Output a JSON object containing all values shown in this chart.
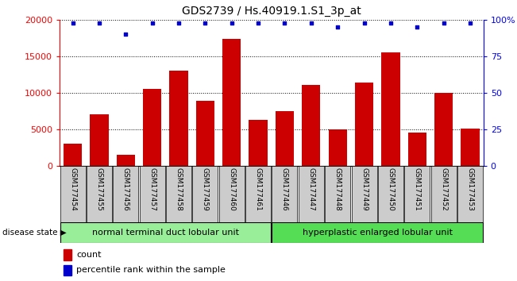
{
  "title": "GDS2739 / Hs.40919.1.S1_3p_at",
  "samples": [
    "GSM177454",
    "GSM177455",
    "GSM177456",
    "GSM177457",
    "GSM177458",
    "GSM177459",
    "GSM177460",
    "GSM177461",
    "GSM177446",
    "GSM177447",
    "GSM177448",
    "GSM177449",
    "GSM177450",
    "GSM177451",
    "GSM177452",
    "GSM177453"
  ],
  "counts": [
    3000,
    7100,
    1500,
    10500,
    13000,
    8900,
    17400,
    6300,
    7500,
    11100,
    5000,
    11400,
    15500,
    4500,
    10000,
    5100
  ],
  "percentile_values": [
    19500,
    19500,
    18000,
    19500,
    19500,
    19500,
    19500,
    19500,
    19500,
    19500,
    19000,
    19500,
    19500,
    19000,
    19500,
    19500
  ],
  "bar_color": "#cc0000",
  "dot_color": "#0000cc",
  "group1_label": "normal terminal duct lobular unit",
  "group2_label": "hyperplastic enlarged lobular unit",
  "group1_count": 8,
  "group2_count": 8,
  "disease_state_label": "disease state",
  "ylim_left": [
    0,
    20000
  ],
  "yticks_left": [
    0,
    5000,
    10000,
    15000,
    20000
  ],
  "yticks_right_scaled": [
    0,
    5000,
    10000,
    15000,
    20000
  ],
  "yticklabels_right": [
    "0",
    "25",
    "50",
    "75",
    "100%"
  ],
  "bg_color": "#ffffff",
  "xticklabel_bg": "#cccccc",
  "group_bg1": "#99ee99",
  "group_bg2": "#55dd55",
  "legend_count_label": "count",
  "legend_pct_label": "percentile rank within the sample",
  "title_fontsize": 10,
  "tick_fontsize": 8,
  "bar_width": 0.7
}
